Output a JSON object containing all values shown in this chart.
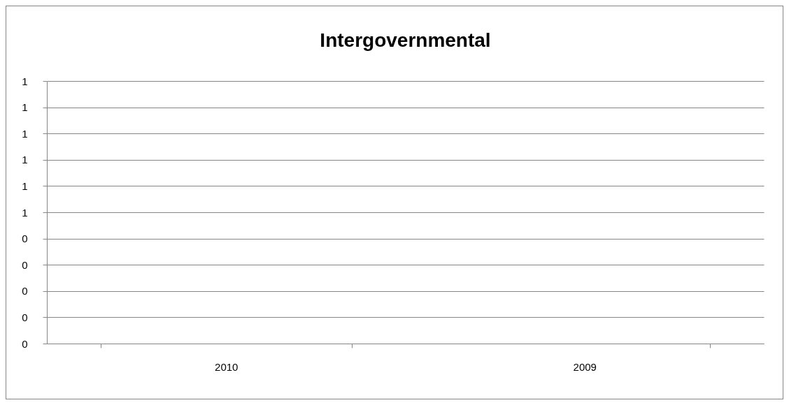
{
  "chart_data": {
    "type": "bar",
    "title": "Intergovernmental",
    "categories": [
      "2010",
      "2009"
    ],
    "values": [
      null,
      null
    ],
    "ylim": [
      0,
      1
    ],
    "yticks": [
      0,
      {
        "value": 0.1,
        "label": "0"
      },
      {
        "value": 0.2,
        "label": "0"
      },
      {
        "value": 0.3,
        "label": "0"
      },
      {
        "value": 0.4,
        "label": "0"
      },
      {
        "value": 0.5,
        "label": "1"
      },
      {
        "value": 0.6,
        "label": "1"
      },
      {
        "value": 0.7,
        "label": "1"
      },
      {
        "value": 0.8,
        "label": "1"
      },
      {
        "value": 0.9,
        "label": "1"
      },
      1
    ],
    "grid": "y"
  }
}
